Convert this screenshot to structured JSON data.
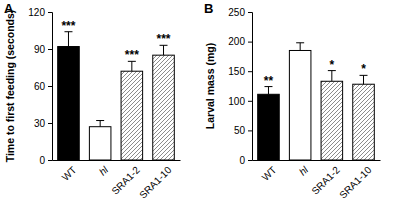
{
  "chart_data": [
    {
      "type": "bar",
      "title": "A",
      "y_label": "Time to first feeding (seconds)",
      "categories": [
        "WT",
        "hl",
        "SRA1-2",
        "SRA1-10"
      ],
      "values": [
        92,
        27,
        72,
        85
      ],
      "errors": [
        12,
        5,
        8,
        8
      ],
      "annotations": [
        "***",
        null,
        "***",
        "***"
      ],
      "colors": [
        "#000000",
        "#ffffff",
        "#8c8c8c",
        "#8c8c8c"
      ],
      "ylim": [
        0,
        120
      ],
      "yticks": [
        0,
        30,
        60,
        90,
        120
      ]
    },
    {
      "type": "bar",
      "title": "B",
      "y_label": "Larval mass (mg)",
      "categories": [
        "WT",
        "hl",
        "SRA1-2",
        "SRA1-10"
      ],
      "values": [
        111,
        185,
        133,
        128
      ],
      "errors": [
        13,
        13,
        18,
        15
      ],
      "annotations": [
        "**",
        null,
        "*",
        "*"
      ],
      "colors": [
        "#000000",
        "#ffffff",
        "#8c8c8c",
        "#8c8c8c"
      ],
      "ylim": [
        0,
        250
      ],
      "yticks": [
        0,
        50,
        100,
        150,
        200,
        250
      ]
    }
  ]
}
